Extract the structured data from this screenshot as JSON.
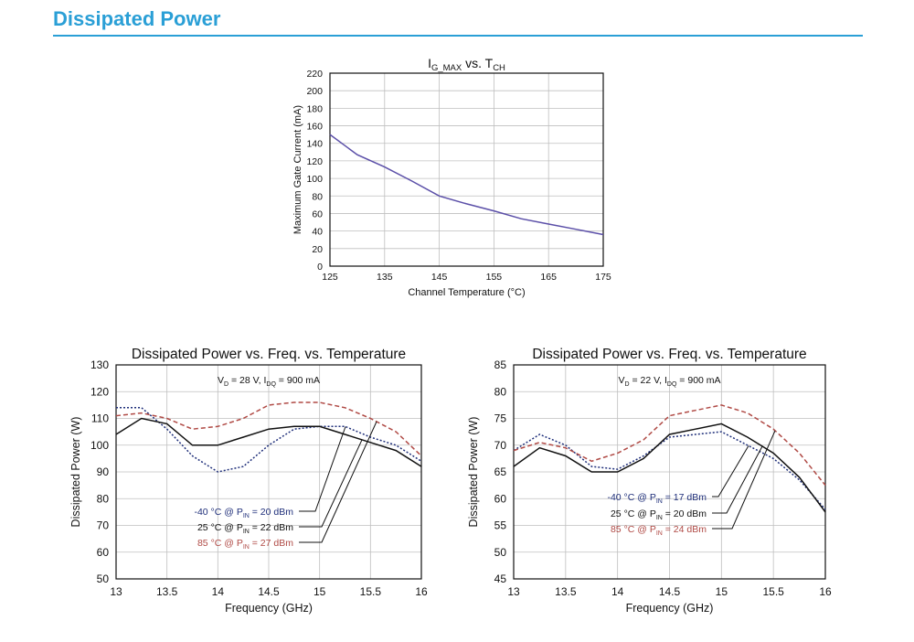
{
  "page": {
    "title": "Dissipated Power",
    "accent_color": "#2a9fd6"
  },
  "chart_data": [
    {
      "type": "line",
      "title_main": "I",
      "title_sub1": "G_MAX",
      "title_mid": " vs. T",
      "title_sub2": "CH",
      "xlabel": "Channel Temperature (°C)",
      "ylabel": "Maximum Gate Current (mA)",
      "xlim": [
        125,
        175
      ],
      "ylim": [
        0,
        220
      ],
      "xticks": [
        125,
        135,
        145,
        155,
        165,
        175
      ],
      "yticks": [
        0,
        20,
        40,
        60,
        80,
        100,
        120,
        140,
        160,
        180,
        200,
        220
      ],
      "grid": true,
      "series": [
        {
          "color": "#5b4fa8",
          "x": [
            125,
            130,
            135,
            140,
            145,
            150,
            155,
            160,
            165,
            170,
            175
          ],
          "y": [
            150,
            127,
            113,
            97,
            80,
            71,
            63,
            54,
            48,
            42,
            36
          ]
        }
      ]
    },
    {
      "type": "line",
      "title": "Dissipated Power vs. Freq. vs. Temperature",
      "cond_a": "V",
      "cond_a_sub": "D",
      "cond_b": " = 28 V, I",
      "cond_b_sub": "DQ",
      "cond_c": " = 900 mA",
      "xlabel": "Frequency (GHz)",
      "ylabel": "Dissipated Power (W)",
      "xlim": [
        13,
        16
      ],
      "ylim": [
        50,
        130
      ],
      "xticks": [
        "13",
        "13.5",
        "14",
        "14.5",
        "15",
        "15.5",
        "16"
      ],
      "yticks": [
        "50",
        "60",
        "70",
        "80",
        "90",
        "100",
        "110",
        "120",
        "130"
      ],
      "grid": true,
      "series": [
        {
          "label_pre": "-40 °C @ P",
          "label_sub": "IN",
          "label_post": " = 20 dBm",
          "color": "#1f2f7a",
          "dash": "2,2",
          "x": [
            13,
            13.25,
            13.5,
            13.75,
            14,
            14.25,
            14.5,
            14.75,
            15,
            15.25,
            15.5,
            15.75,
            16
          ],
          "y": [
            114,
            114,
            106,
            96,
            90,
            92,
            100,
            106,
            107,
            107,
            103,
            100,
            94
          ]
        },
        {
          "label_pre": "25 °C @ P",
          "label_sub": "IN",
          "label_post": " = 22 dBm",
          "color": "#111111",
          "dash": "",
          "x": [
            13,
            13.25,
            13.5,
            13.75,
            14,
            14.25,
            14.5,
            14.75,
            15,
            15.25,
            15.5,
            15.75,
            16
          ],
          "y": [
            104,
            110,
            108,
            100,
            100,
            103,
            106,
            107,
            107,
            104,
            101,
            98,
            92
          ]
        },
        {
          "label_pre": "85 °C @ P",
          "label_sub": "IN",
          "label_post": " = 27 dBm",
          "color": "#b04a45",
          "dash": "5,3",
          "x": [
            13,
            13.25,
            13.5,
            13.75,
            14,
            14.25,
            14.5,
            14.75,
            15,
            15.25,
            15.5,
            15.75,
            16
          ],
          "y": [
            111,
            112,
            110,
            106,
            107,
            110,
            115,
            116,
            116,
            114,
            110,
            105,
            96
          ]
        }
      ]
    },
    {
      "type": "line",
      "title": "Dissipated Power vs. Freq. vs. Temperature",
      "cond_a": "V",
      "cond_a_sub": "D",
      "cond_b": " = 22 V, I",
      "cond_b_sub": "DQ",
      "cond_c": " = 900 mA",
      "xlabel": "Frequency (GHz)",
      "ylabel": "Dissipated Power (W)",
      "xlim": [
        13,
        16
      ],
      "ylim": [
        45,
        85
      ],
      "xticks": [
        "13",
        "13.5",
        "14",
        "14.5",
        "15",
        "15.5",
        "16"
      ],
      "yticks": [
        "45",
        "50",
        "55",
        "60",
        "65",
        "70",
        "75",
        "80",
        "85"
      ],
      "grid": true,
      "series": [
        {
          "label_pre": "-40 °C @ P",
          "label_sub": "IN",
          "label_post": " = 17 dBm",
          "color": "#1f2f7a",
          "dash": "2,2",
          "x": [
            13,
            13.25,
            13.5,
            13.75,
            14,
            14.25,
            14.5,
            14.75,
            15,
            15.25,
            15.5,
            15.75,
            16
          ],
          "y": [
            69,
            72,
            70,
            66,
            65.5,
            68,
            71.5,
            72,
            72.5,
            70,
            67.5,
            63.5,
            58
          ]
        },
        {
          "label_pre": "25 °C @ P",
          "label_sub": "IN",
          "label_post": " = 20 dBm",
          "color": "#111111",
          "dash": "",
          "x": [
            13,
            13.25,
            13.5,
            13.75,
            14,
            14.25,
            14.5,
            14.75,
            15,
            15.25,
            15.5,
            15.75,
            16
          ],
          "y": [
            66,
            69.5,
            68,
            65,
            65,
            67.5,
            72,
            73,
            74,
            71.5,
            68.5,
            64,
            57.5
          ]
        },
        {
          "label_pre": "85 °C @ P",
          "label_sub": "IN",
          "label_post": " = 24 dBm",
          "color": "#b04a45",
          "dash": "5,3",
          "x": [
            13,
            13.25,
            13.5,
            13.75,
            14,
            14.25,
            14.5,
            14.75,
            15,
            15.25,
            15.5,
            15.75,
            16
          ],
          "y": [
            69,
            70.5,
            69.5,
            67,
            68.5,
            71,
            75.5,
            76.5,
            77.5,
            76,
            73,
            68.5,
            62.5
          ]
        }
      ]
    }
  ]
}
